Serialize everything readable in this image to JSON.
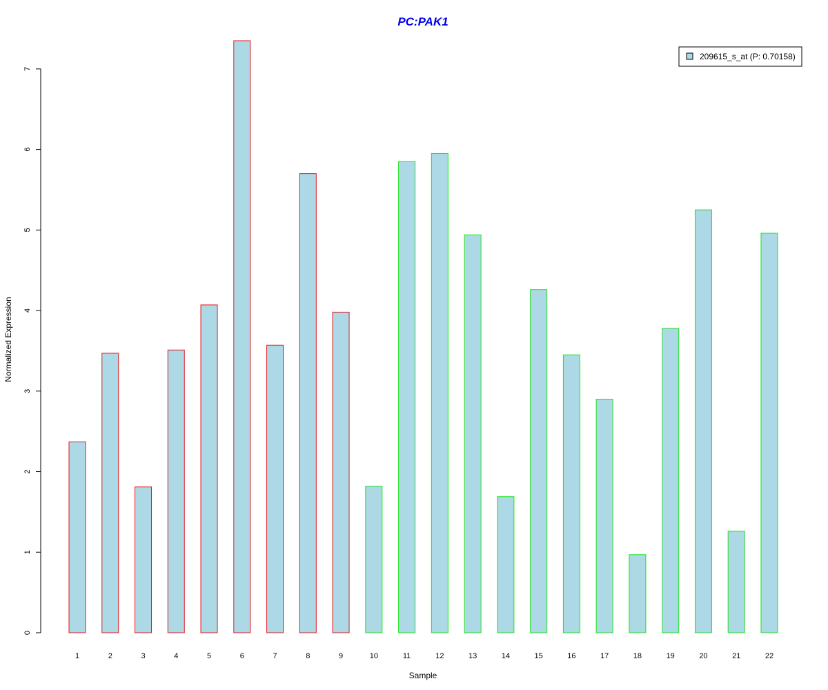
{
  "colors": {
    "title": "#0000ee",
    "bar_fill": "#add8e6",
    "group_red": "#e0191f",
    "group_green": "#1de21d",
    "axis": "#000000"
  },
  "chart_data": {
    "type": "bar",
    "title": "PC:PAK1",
    "xlabel": "Sample",
    "ylabel": "Normalized Expression",
    "categories": [
      "1",
      "2",
      "3",
      "4",
      "5",
      "6",
      "7",
      "8",
      "9",
      "10",
      "11",
      "12",
      "13",
      "14",
      "15",
      "16",
      "17",
      "18",
      "19",
      "20",
      "21",
      "22"
    ],
    "series": [
      {
        "name": "209615_s_at (P: 0.70158)",
        "values": [
          2.37,
          3.47,
          1.81,
          3.51,
          4.07,
          7.35,
          3.57,
          5.7,
          3.98,
          1.82,
          5.85,
          5.95,
          4.94,
          1.69,
          4.26,
          3.45,
          2.9,
          0.97,
          3.78,
          5.25,
          1.26,
          4.96
        ],
        "border_groups": [
          "red",
          "red",
          "red",
          "red",
          "red",
          "red",
          "red",
          "red",
          "red",
          "green",
          "green",
          "green",
          "green",
          "green",
          "green",
          "green",
          "green",
          "green",
          "green",
          "green",
          "green",
          "green"
        ]
      }
    ],
    "ylim": [
      0,
      7.35
    ],
    "yticks": [
      0,
      1,
      2,
      3,
      4,
      5,
      6,
      7
    ],
    "ytick_labels": [
      "0",
      "1",
      "2",
      "3",
      "4",
      "5",
      "6",
      "7"
    ],
    "grid": false,
    "legend_position": "top-right"
  }
}
